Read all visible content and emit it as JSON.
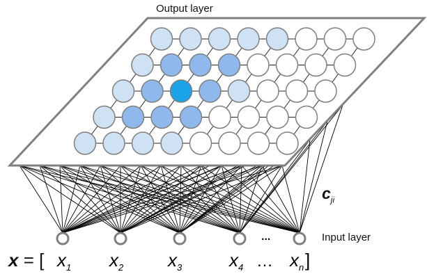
{
  "labels": {
    "output_layer": "Output layer",
    "input_layer": "Input layer",
    "weight_symbol": "c",
    "weight_subscript": "ji",
    "input_ellipsis": "...",
    "vector_name": "x",
    "vector_prefix": " =  [",
    "vector_ellipsis": "…",
    "vector_close": "]"
  },
  "inputs": [
    {
      "symbol": "x",
      "subscript": "1"
    },
    {
      "symbol": "x",
      "subscript": "2"
    },
    {
      "symbol": "x",
      "subscript": "3"
    },
    {
      "symbol": "x",
      "subscript": "4"
    },
    {
      "symbol": "x",
      "subscript": "n"
    }
  ],
  "colors": {
    "winner": "#1aa3e8",
    "neighbor_1": "#8fb8ec",
    "neighbor_2": "#cfe2f3",
    "inactive": "#ffffff",
    "stroke": "#7f7f7f",
    "line": "#000000"
  },
  "grid": {
    "rows": 5,
    "cols": 8,
    "activation": [
      [
        2,
        2,
        2,
        2,
        2,
        0,
        0,
        0
      ],
      [
        2,
        1,
        1,
        1,
        0,
        0,
        0,
        0
      ],
      [
        2,
        1,
        3,
        1,
        2,
        0,
        0,
        0
      ],
      [
        2,
        1,
        1,
        1,
        0,
        0,
        0,
        0
      ],
      [
        2,
        2,
        2,
        2,
        0,
        0,
        0,
        0
      ]
    ]
  }
}
